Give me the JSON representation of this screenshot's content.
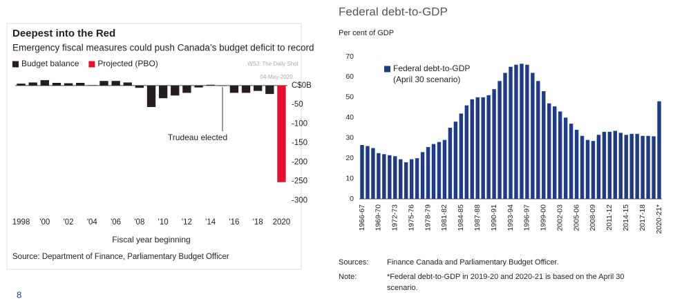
{
  "page_number": "8",
  "chart_data": [
    {
      "type": "bar",
      "title": "Deepest into the Red",
      "subtitle": "Emergency fiscal measures could push Canada’s budget deficit to record",
      "x_label": "Fiscal year beginning",
      "source": "Source: Department of Finance, Parliamentary Budget Officer",
      "watermark": [
        "WSJ: The Daily Shot",
        "04-May-2020"
      ],
      "annotation": "Trudeau elected",
      "categories": [
        "1998",
        null,
        "'00",
        null,
        "'02",
        null,
        "'04",
        null,
        "'06",
        null,
        "'08",
        null,
        "'10",
        null,
        "'12",
        null,
        "'14",
        null,
        "'16",
        null,
        "'18",
        null,
        "2020"
      ],
      "series": [
        {
          "name": "Budget balance",
          "color": "#231f20",
          "values": [
            5,
            8,
            14,
            7,
            6,
            7,
            1,
            12,
            12,
            8,
            -6,
            -56,
            -33,
            -26,
            -19,
            -5,
            2,
            -1,
            -19,
            -19,
            -14,
            -22,
            null
          ]
        },
        {
          "name": "Projected (PBO)",
          "color": "#e8112d",
          "values": [
            null,
            null,
            null,
            null,
            null,
            null,
            null,
            null,
            null,
            null,
            null,
            null,
            null,
            null,
            null,
            null,
            null,
            null,
            null,
            null,
            null,
            null,
            -252
          ]
        }
      ],
      "ylim": [
        -310,
        25
      ],
      "yticks": [
        {
          "value": 0,
          "label": "C$0B"
        },
        -50,
        -100,
        -150,
        -200,
        -250,
        -300
      ],
      "y_axis_side": "right",
      "grid": false,
      "legend": "top-left"
    },
    {
      "type": "bar",
      "title": "Federal debt-to-GDP",
      "y_label": "Per cent of GDP",
      "categories": [
        "1966-67",
        null,
        null,
        "1969-70",
        null,
        null,
        "1972-73",
        null,
        null,
        "1975-76",
        null,
        null,
        "1978-79",
        null,
        null,
        "1981-82",
        null,
        null,
        "1984-85",
        null,
        null,
        "1987-88",
        null,
        null,
        "1990-91",
        null,
        null,
        "1993-94",
        null,
        null,
        "1996-97",
        null,
        null,
        "1999-00",
        null,
        null,
        "2002-03",
        null,
        null,
        "2005-06",
        null,
        null,
        "2008-09",
        null,
        null,
        "2011-12",
        null,
        null,
        "2014-15",
        null,
        null,
        "2017-18",
        null,
        null,
        "2020-21*"
      ],
      "series": [
        {
          "name": "Federal debt-to-GDP",
          "note": "(April 30 scenario)",
          "color": "#1f3c88",
          "values": [
            26.5,
            26,
            25,
            22.5,
            22,
            21.5,
            21,
            19.5,
            18,
            19.5,
            20,
            23,
            25.5,
            27,
            28,
            29,
            35,
            38,
            42,
            46,
            49,
            50,
            50,
            51,
            54,
            58,
            62,
            65,
            66,
            66.5,
            66,
            62,
            58,
            53,
            47,
            45.5,
            43,
            40,
            37,
            34,
            31,
            29,
            28.5,
            31.5,
            33,
            33,
            33.5,
            32.5,
            31.5,
            32,
            32,
            31,
            31,
            30.8,
            48
          ]
        }
      ],
      "ylim": [
        0,
        70
      ],
      "yticks": [
        0,
        10,
        20,
        30,
        40,
        50,
        60,
        70
      ],
      "y_axis_side": "left",
      "xtick_rotation": -90,
      "grid": false,
      "legend": "top-left",
      "sources": {
        "label": "Sources:",
        "text": "Finance Canada and Parliamentary Budget Officer."
      },
      "note": {
        "label": "Note:",
        "lines": [
          "*Federal debt-to-GDP in 2019-20 and 2020-21 is based on the April 30",
          "scenario."
        ]
      }
    }
  ]
}
